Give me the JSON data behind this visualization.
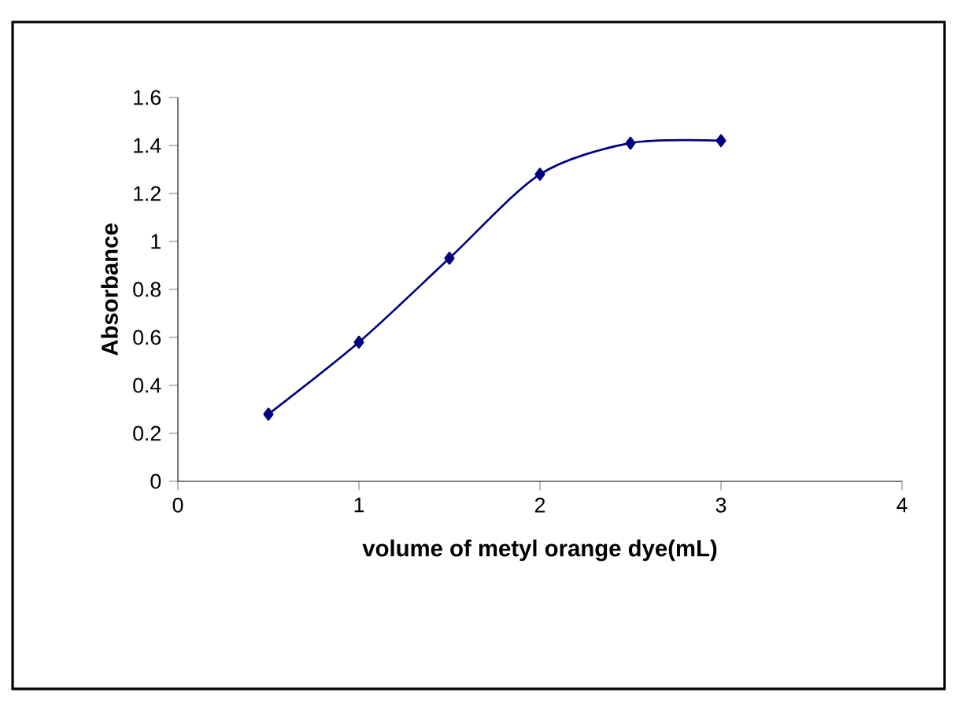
{
  "chart_data": {
    "type": "line",
    "xlabel": "volume of metyl orange dye(mL)",
    "ylabel": "Absorbance",
    "x": [
      0.5,
      1,
      1.5,
      2,
      2.5,
      3
    ],
    "series": [
      {
        "color": "#000080",
        "values": [
          0.28,
          0.58,
          0.93,
          1.28,
          1.41,
          1.42
        ]
      }
    ],
    "xlim": [
      0,
      4
    ],
    "ylim": [
      0,
      1.6
    ],
    "xticks": [
      0,
      1,
      2,
      3,
      4
    ],
    "yticks": [
      0,
      0.2,
      0.4,
      0.6,
      0.8,
      1,
      1.2,
      1.4,
      1.6
    ],
    "marker": "diamond",
    "line_style": "solid"
  }
}
